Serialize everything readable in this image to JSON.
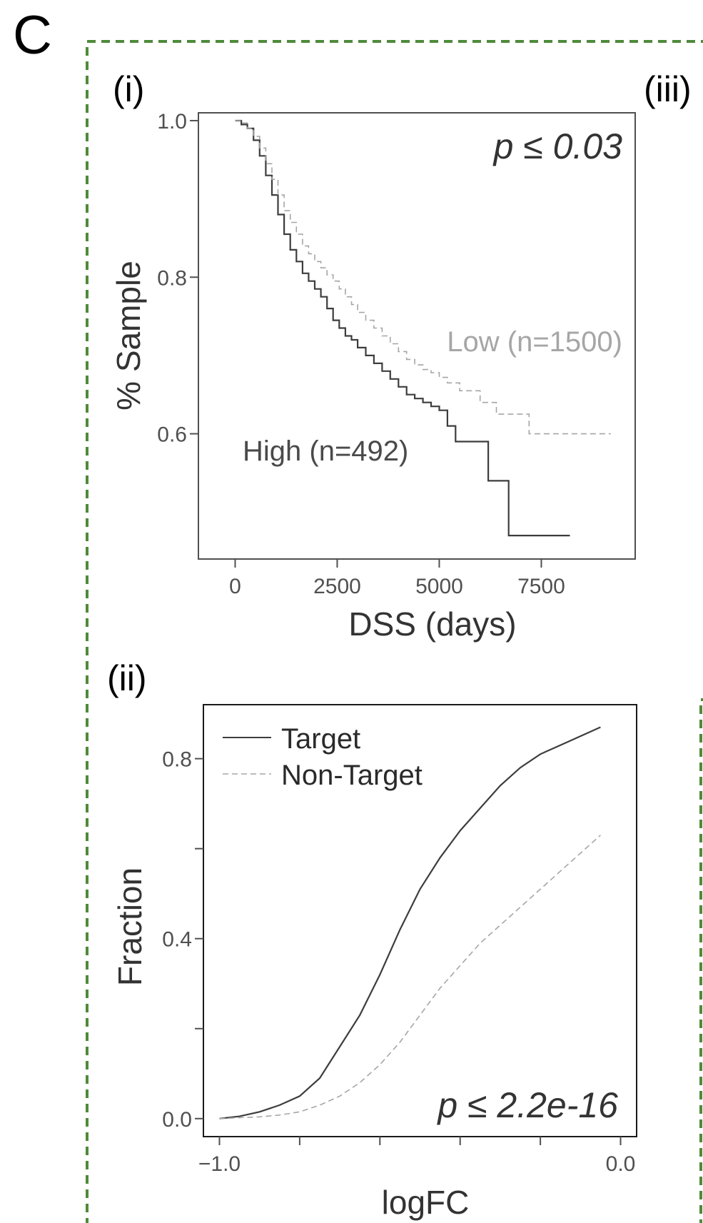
{
  "figure": {
    "panel_letter": "C",
    "sub_label_iii": "(iii)"
  },
  "colors": {
    "border_green": "#4f8a3a",
    "dark_line": "#3d3d3d",
    "light_line": "#a6a6a6",
    "axis_text": "#505050",
    "low_text": "#a6a6a6"
  },
  "chart_data": [
    {
      "type": "line",
      "panel": "(i)",
      "xlabel": "DSS (days)",
      "ylabel": "% Sample",
      "xlim": [
        -900,
        9800
      ],
      "ylim": [
        0.44,
        1.01
      ],
      "xticks": [
        0,
        2500,
        5000,
        7500
      ],
      "yticks": [
        1.0,
        0.8,
        0.6
      ],
      "annotation": "p ≤ 0.03",
      "step": true,
      "series": [
        {
          "name": "High (n=492)",
          "style": "solid",
          "x": [
            0,
            150,
            300,
            450,
            600,
            750,
            900,
            1050,
            1200,
            1350,
            1500,
            1650,
            1800,
            1950,
            2100,
            2250,
            2400,
            2550,
            2700,
            2850,
            3000,
            3200,
            3400,
            3600,
            3800,
            4000,
            4200,
            4400,
            4600,
            4800,
            5000,
            5200,
            5400,
            6200,
            6700,
            8200
          ],
          "y": [
            1.0,
            0.995,
            0.99,
            0.975,
            0.955,
            0.93,
            0.905,
            0.88,
            0.855,
            0.835,
            0.82,
            0.805,
            0.795,
            0.785,
            0.775,
            0.76,
            0.745,
            0.735,
            0.725,
            0.72,
            0.71,
            0.7,
            0.69,
            0.68,
            0.67,
            0.66,
            0.65,
            0.645,
            0.64,
            0.635,
            0.63,
            0.61,
            0.59,
            0.54,
            0.47,
            0.47
          ]
        },
        {
          "name": "Low (n=1500)",
          "style": "dashed",
          "x": [
            0,
            150,
            300,
            450,
            600,
            750,
            900,
            1050,
            1200,
            1350,
            1500,
            1650,
            1800,
            1950,
            2100,
            2250,
            2400,
            2550,
            2700,
            2850,
            3000,
            3200,
            3400,
            3600,
            3800,
            4000,
            4200,
            4400,
            4600,
            4800,
            5000,
            5200,
            5500,
            6000,
            6400,
            7200,
            9200
          ],
          "y": [
            1.0,
            0.997,
            0.99,
            0.98,
            0.965,
            0.945,
            0.925,
            0.905,
            0.885,
            0.87,
            0.855,
            0.84,
            0.83,
            0.82,
            0.812,
            0.803,
            0.795,
            0.785,
            0.775,
            0.765,
            0.755,
            0.745,
            0.735,
            0.725,
            0.715,
            0.705,
            0.695,
            0.688,
            0.682,
            0.678,
            0.672,
            0.665,
            0.655,
            0.64,
            0.625,
            0.6,
            0.6
          ]
        }
      ]
    },
    {
      "type": "line",
      "panel": "(ii)",
      "xlabel": "logFC",
      "ylabel": "Fraction",
      "xlim": [
        -1.04,
        0.04
      ],
      "ylim": [
        -0.04,
        0.92
      ],
      "xticks": [
        -1.0,
        -0.8,
        -0.6,
        -0.4,
        -0.2,
        0.0
      ],
      "xtick_labels": [
        "−1.0",
        "",
        "",
        "",
        "",
        "0.0"
      ],
      "yticks": [
        0.0,
        0.2,
        0.4,
        0.6,
        0.8
      ],
      "ytick_labels": [
        "0.0",
        "",
        "0.4",
        "",
        "0.8"
      ],
      "annotation": "p ≤ 2.2e-16",
      "legend": "top-left",
      "series": [
        {
          "name": "Target",
          "style": "solid",
          "x": [
            -1.0,
            -0.95,
            -0.9,
            -0.85,
            -0.8,
            -0.75,
            -0.7,
            -0.65,
            -0.6,
            -0.55,
            -0.5,
            -0.45,
            -0.4,
            -0.35,
            -0.3,
            -0.25,
            -0.2,
            -0.15,
            -0.1,
            -0.05
          ],
          "y": [
            0.0,
            0.005,
            0.015,
            0.03,
            0.05,
            0.09,
            0.16,
            0.23,
            0.32,
            0.42,
            0.51,
            0.58,
            0.64,
            0.69,
            0.74,
            0.78,
            0.81,
            0.83,
            0.85,
            0.87
          ]
        },
        {
          "name": "Non-Target",
          "style": "dashed",
          "x": [
            -1.0,
            -0.95,
            -0.9,
            -0.85,
            -0.8,
            -0.75,
            -0.7,
            -0.65,
            -0.6,
            -0.55,
            -0.5,
            -0.45,
            -0.4,
            -0.35,
            -0.3,
            -0.25,
            -0.2,
            -0.15,
            -0.1,
            -0.05
          ],
          "y": [
            0.0,
            0.002,
            0.004,
            0.008,
            0.015,
            0.03,
            0.05,
            0.08,
            0.12,
            0.17,
            0.23,
            0.29,
            0.34,
            0.39,
            0.43,
            0.47,
            0.51,
            0.55,
            0.59,
            0.63
          ]
        }
      ]
    }
  ]
}
